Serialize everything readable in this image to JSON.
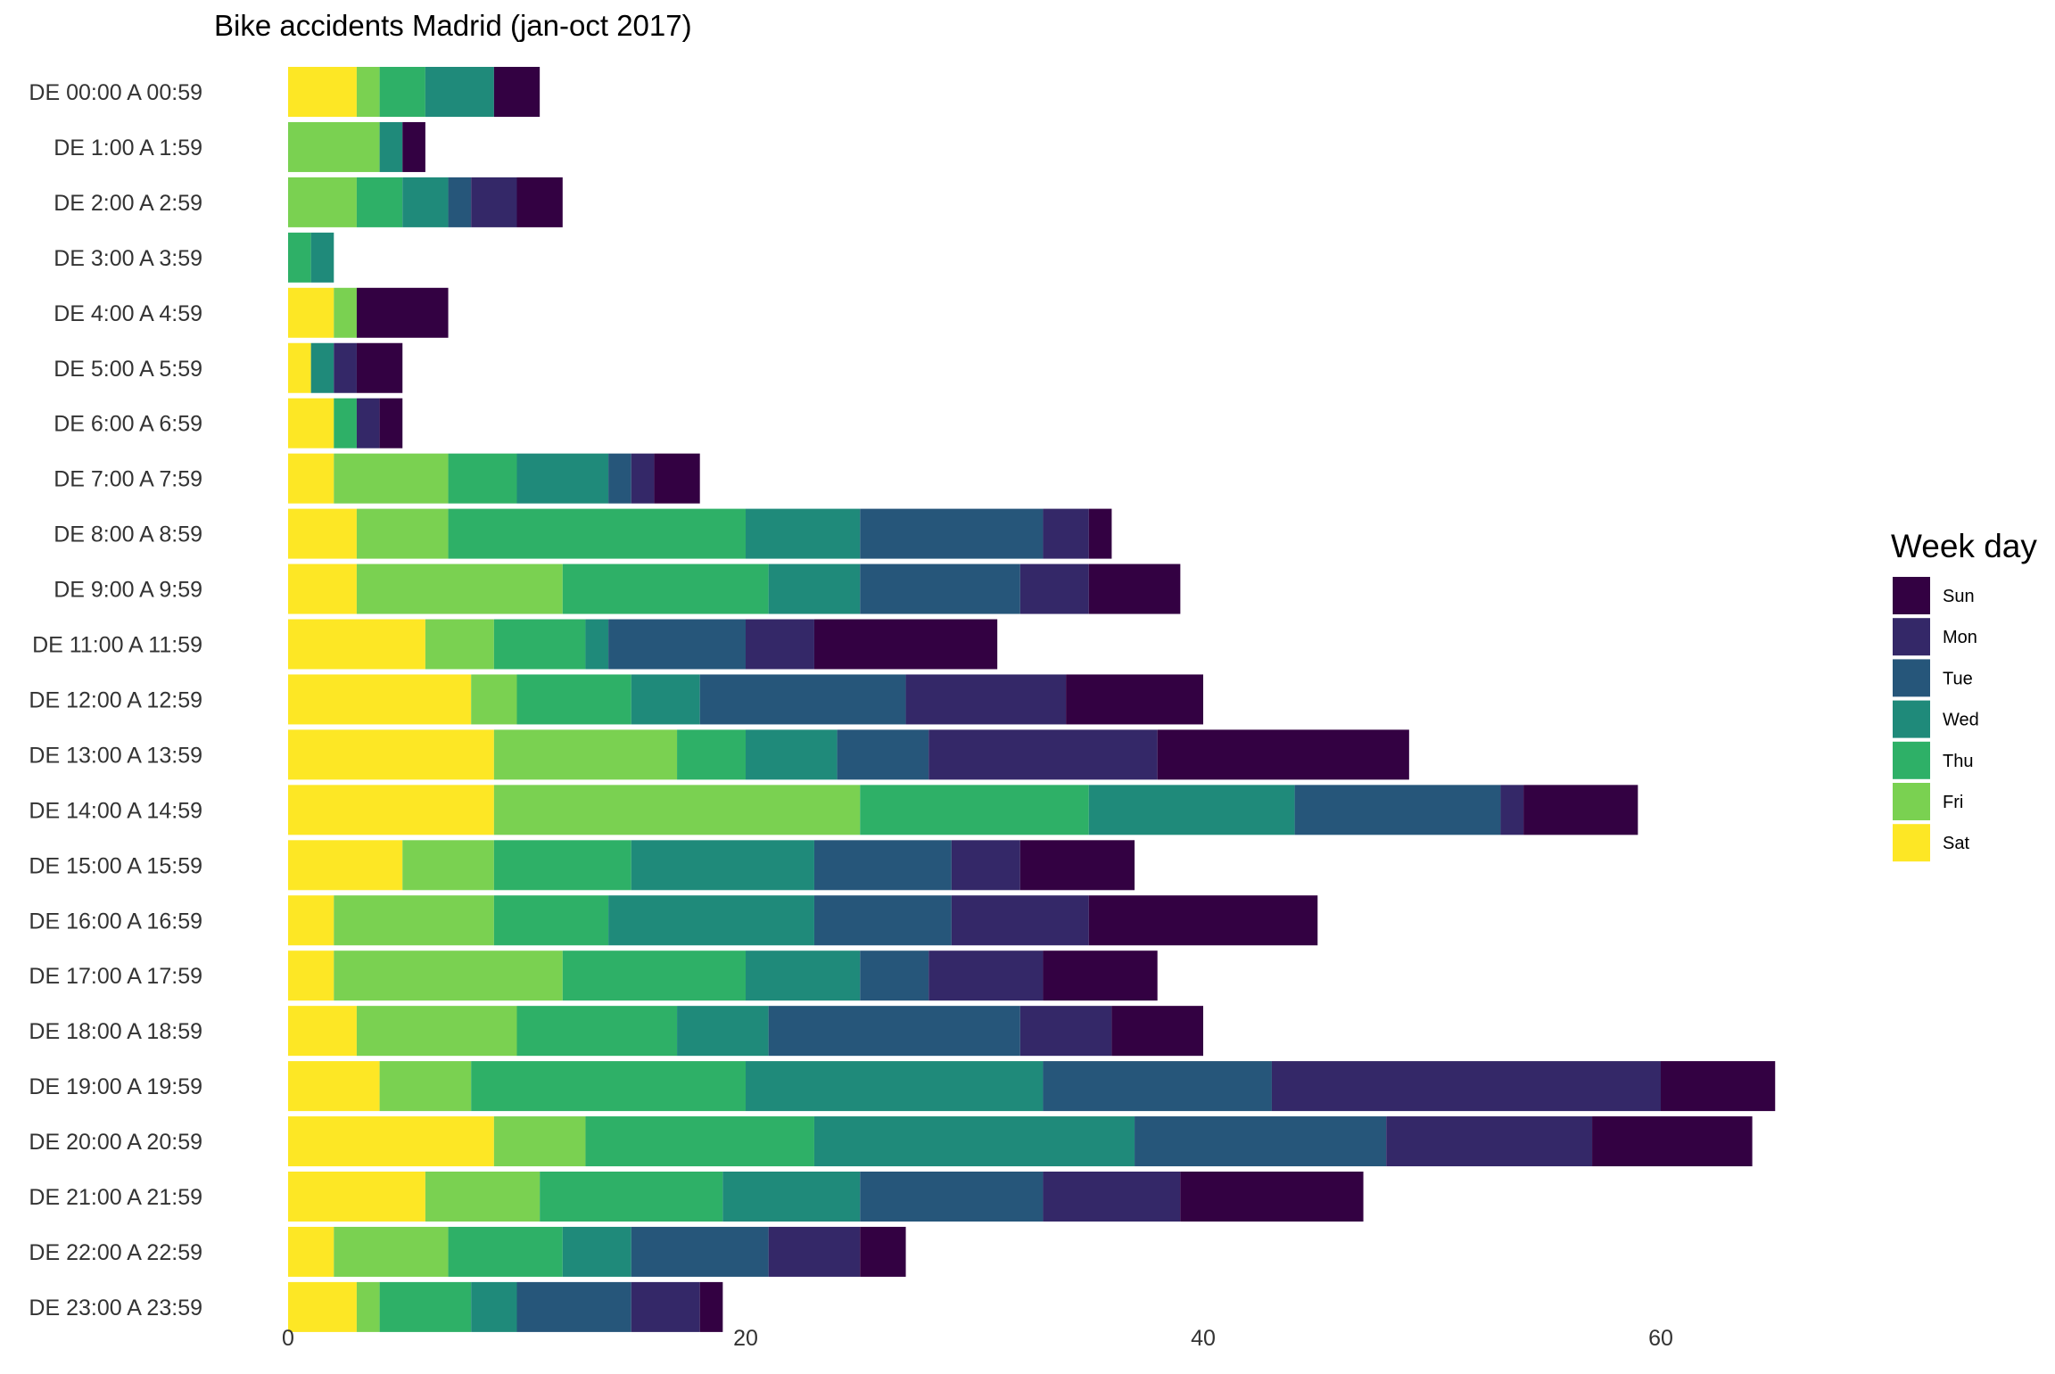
{
  "chart_data": {
    "type": "bar",
    "orientation": "horizontal",
    "stacked": true,
    "title": "Bike accidents Madrid (jan-oct 2017)",
    "xlabel": "",
    "ylabel": "",
    "xlim": [
      0,
      70
    ],
    "x_ticks": [
      0,
      20,
      40,
      60
    ],
    "grid": false,
    "legend_position": "right",
    "legend_title": "Week day",
    "categories": [
      "DE 00:00 A 00:59",
      "DE 1:00 A 1:59",
      "DE 2:00 A 2:59",
      "DE 3:00 A 3:59",
      "DE 4:00 A 4:59",
      "DE 5:00 A 5:59",
      "DE 6:00 A 6:59",
      "DE 7:00 A 7:59",
      "DE 8:00 A 8:59",
      "DE 9:00 A 9:59",
      "DE 11:00 A 11:59",
      "DE 12:00 A 12:59",
      "DE 13:00 A 13:59",
      "DE 14:00 A 14:59",
      "DE 15:00 A 15:59",
      "DE 16:00 A 16:59",
      "DE 17:00 A 17:59",
      "DE 18:00 A 18:59",
      "DE 19:00 A 19:59",
      "DE 20:00 A 20:59",
      "DE 21:00 A 21:59",
      "DE 22:00 A 22:59",
      "DE 23:00 A 23:59"
    ],
    "series": [
      {
        "name": "Sat",
        "color": "#fde725",
        "values": [
          3,
          0,
          0,
          0,
          2,
          1,
          2,
          2,
          3,
          3,
          6,
          8,
          9,
          9,
          5,
          2,
          2,
          3,
          4,
          9,
          6,
          2,
          3
        ]
      },
      {
        "name": "Fri",
        "color": "#7ad151",
        "values": [
          1,
          4,
          3,
          0,
          1,
          0,
          0,
          5,
          4,
          9,
          3,
          2,
          8,
          16,
          4,
          7,
          10,
          7,
          4,
          4,
          5,
          5,
          1
        ]
      },
      {
        "name": "Thu",
        "color": "#2eb067",
        "values": [
          2,
          0,
          2,
          1,
          0,
          0,
          1,
          3,
          13,
          9,
          4,
          5,
          3,
          10,
          6,
          5,
          8,
          7,
          12,
          10,
          8,
          5,
          4
        ]
      },
      {
        "name": "Wed",
        "color": "#1f8a7a",
        "values": [
          3,
          1,
          2,
          1,
          0,
          1,
          0,
          4,
          5,
          4,
          1,
          3,
          4,
          9,
          8,
          9,
          5,
          4,
          13,
          14,
          6,
          3,
          2
        ]
      },
      {
        "name": "Tue",
        "color": "#26567a",
        "values": [
          0,
          0,
          1,
          0,
          0,
          0,
          0,
          1,
          8,
          7,
          6,
          9,
          4,
          9,
          6,
          6,
          3,
          11,
          10,
          11,
          8,
          6,
          5
        ]
      },
      {
        "name": "Mon",
        "color": "#342868",
        "values": [
          0,
          0,
          2,
          0,
          0,
          1,
          1,
          1,
          2,
          3,
          3,
          7,
          10,
          1,
          3,
          6,
          5,
          4,
          17,
          9,
          6,
          4,
          3
        ]
      },
      {
        "name": "Sun",
        "color": "#330142",
        "values": [
          2,
          1,
          2,
          0,
          4,
          2,
          1,
          2,
          1,
          4,
          8,
          6,
          11,
          5,
          5,
          10,
          5,
          4,
          5,
          7,
          8,
          2,
          1
        ]
      }
    ],
    "legend_order": [
      "Sun",
      "Mon",
      "Tue",
      "Wed",
      "Thu",
      "Fri",
      "Sat"
    ]
  }
}
